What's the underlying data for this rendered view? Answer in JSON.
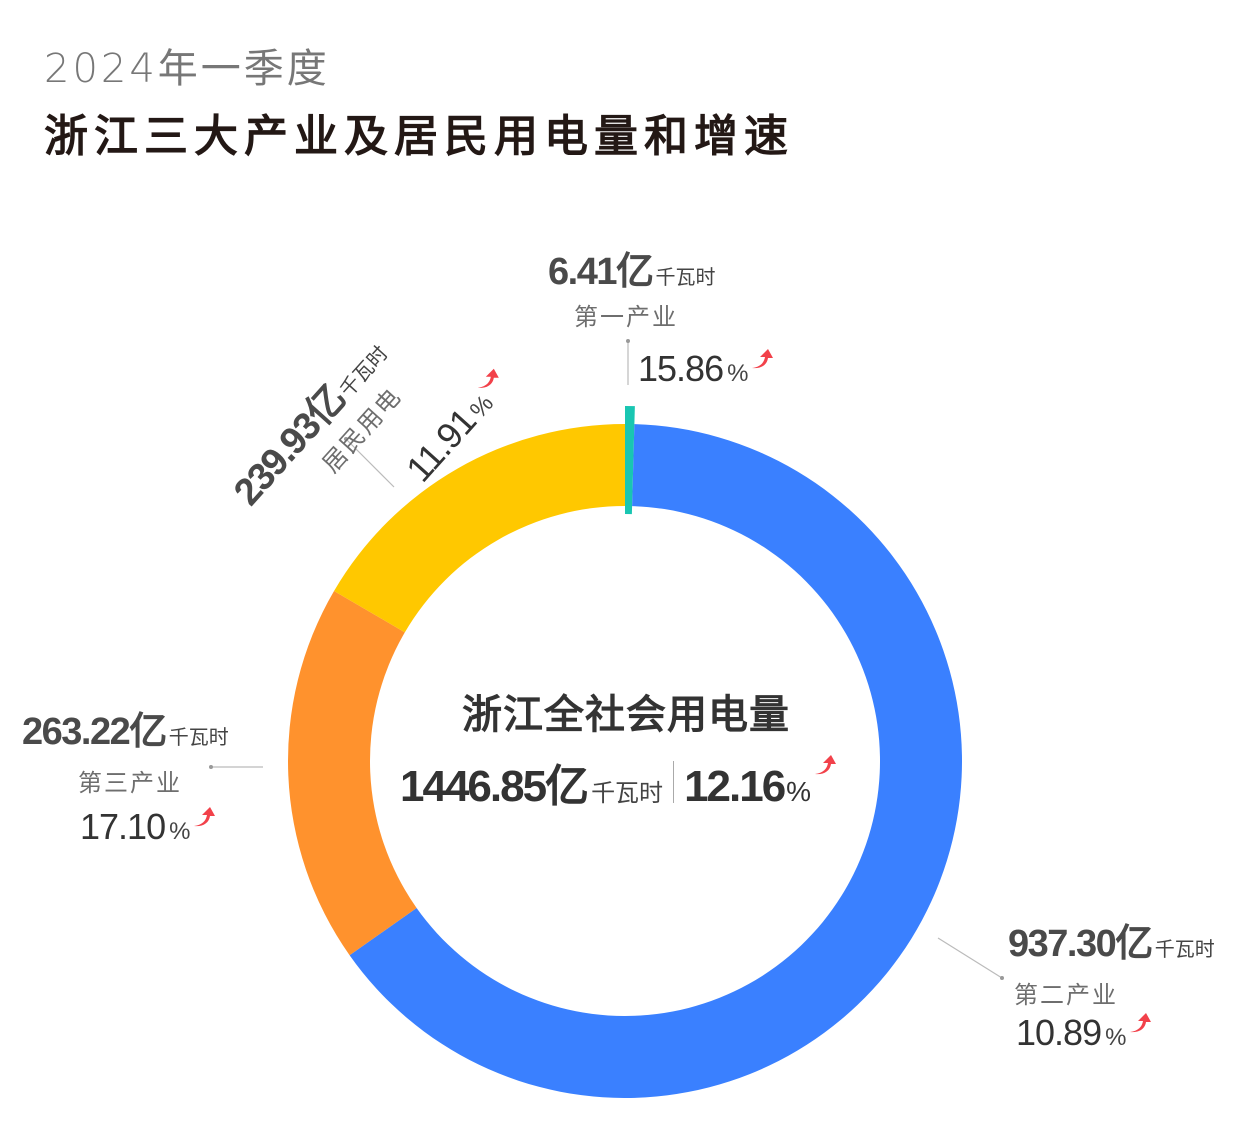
{
  "header": {
    "subtitle": "2024年一季度",
    "title": "浙江三大产业及居民用电量和增速"
  },
  "center": {
    "title": "浙江全社会用电量",
    "value": "1446.85亿",
    "unit": "千瓦时",
    "growth": "12.16",
    "percent_sign": "%"
  },
  "segments": [
    {
      "name": "第一产业",
      "value": "6.41亿",
      "unit": "千瓦时",
      "growth": "15.86",
      "percent_sign": "%",
      "color": "#19C6B2"
    },
    {
      "name": "第二产业",
      "value": "937.30亿",
      "unit": "千瓦时",
      "growth": "10.89",
      "percent_sign": "%",
      "color": "#3A80FF"
    },
    {
      "name": "第三产业",
      "value": "263.22亿",
      "unit": "千瓦时",
      "growth": "17.10",
      "percent_sign": "%",
      "color": "#FF922D"
    },
    {
      "name": "居民用电",
      "value": "239.93亿",
      "unit": "千瓦时",
      "growth": "11.91",
      "percent_sign": "%",
      "color": "#FFC800"
    }
  ],
  "colors": {
    "up_arrow": "#F2414A",
    "leader_line": "#BBBBBB"
  },
  "chart_data": {
    "type": "pie",
    "subtype": "donut",
    "title": "浙江三大产业及居民用电量和增速",
    "subtitle": "2024年一季度",
    "unit": "亿千瓦时",
    "center_label": "浙江全社会用电量",
    "total": 1446.85,
    "total_growth_pct": 12.16,
    "categories": [
      "第一产业",
      "第二产业",
      "第三产业",
      "居民用电"
    ],
    "values": [
      6.41,
      937.3,
      263.22,
      239.93
    ],
    "growth_pct": [
      15.86,
      10.89,
      17.1,
      11.91
    ],
    "colors": [
      "#19C6B2",
      "#3A80FF",
      "#FF922D",
      "#FFC800"
    ],
    "start_angle": "12 o'clock, clockwise",
    "legend": "none (direct labels with leader lines)"
  }
}
